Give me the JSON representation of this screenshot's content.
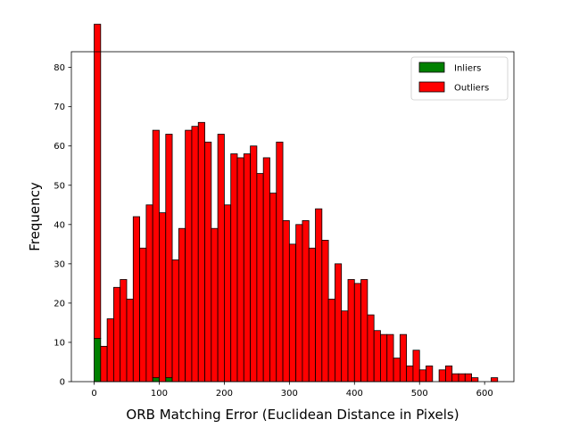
{
  "chart_data": {
    "type": "bar",
    "chart_subtype": "stacked-histogram",
    "title": "",
    "xlabel": "ORB Matching Error (Euclidean Distance in Pixels)",
    "ylabel": "Frequency",
    "xlim": [
      -35,
      645
    ],
    "ylim": [
      0,
      84
    ],
    "bin_width": 10,
    "x_ticks": [
      0,
      100,
      200,
      300,
      400,
      500,
      600
    ],
    "y_ticks": [
      0,
      10,
      20,
      30,
      40,
      50,
      60,
      70,
      80
    ],
    "grid": false,
    "legend_position": "top-right",
    "bin_starts": [
      0,
      10,
      20,
      30,
      40,
      50,
      60,
      70,
      80,
      90,
      100,
      110,
      120,
      130,
      140,
      150,
      160,
      170,
      180,
      190,
      200,
      210,
      220,
      230,
      240,
      250,
      260,
      270,
      280,
      290,
      300,
      310,
      320,
      330,
      340,
      350,
      360,
      370,
      380,
      390,
      400,
      410,
      420,
      430,
      440,
      450,
      460,
      470,
      480,
      490,
      500,
      510,
      520,
      530,
      540,
      550,
      560,
      570,
      580,
      590,
      600,
      610
    ],
    "series": [
      {
        "name": "Inliers",
        "color": "#008000",
        "values": [
          11,
          0,
          0,
          0,
          0,
          0,
          0,
          0,
          0,
          1,
          0,
          1,
          0,
          0,
          0,
          0,
          0,
          0,
          0,
          0,
          0,
          0,
          0,
          0,
          0,
          0,
          0,
          0,
          0,
          0,
          0,
          0,
          0,
          0,
          0,
          0,
          0,
          0,
          0,
          0,
          0,
          0,
          0,
          0,
          0,
          0,
          0,
          0,
          0,
          0,
          0,
          0,
          0,
          0,
          0,
          0,
          0,
          0,
          0,
          0,
          0,
          0
        ]
      },
      {
        "name": "Outliers",
        "color": "#ff0000",
        "values": [
          80,
          9,
          16,
          24,
          26,
          21,
          42,
          34,
          45,
          63,
          43,
          62,
          31,
          39,
          64,
          65,
          66,
          61,
          39,
          63,
          45,
          58,
          57,
          58,
          60,
          53,
          57,
          48,
          61,
          41,
          35,
          40,
          41,
          34,
          44,
          36,
          21,
          30,
          18,
          26,
          25,
          26,
          17,
          13,
          12,
          12,
          6,
          12,
          4,
          8,
          3,
          4,
          0,
          3,
          4,
          2,
          2,
          2,
          1,
          0,
          0,
          1
        ]
      }
    ]
  }
}
